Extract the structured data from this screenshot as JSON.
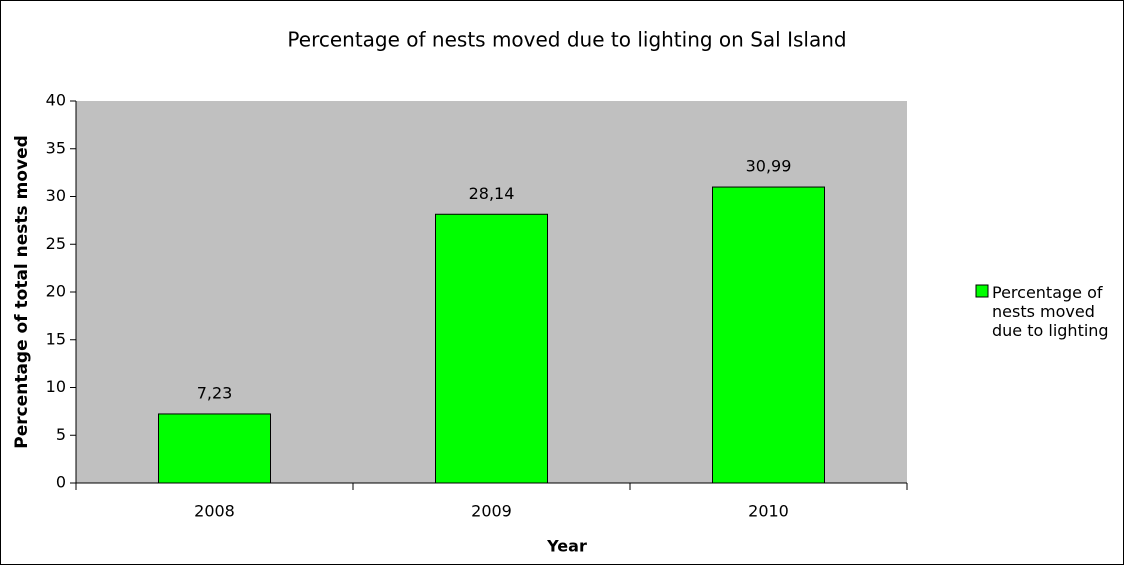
{
  "chart_data": {
    "type": "bar",
    "title": "Percentage of nests moved due to lighting on Sal Island",
    "x_label": "Year",
    "y_label": "Percentage of total nests moved",
    "categories": [
      "2008",
      "2009",
      "2010"
    ],
    "series": [
      {
        "name": "Percentage of nests moved due to lighting",
        "color": "#00ff00",
        "values": [
          7.23,
          28.14,
          30.99
        ],
        "value_labels": [
          "7,23",
          "28,14",
          "30,99"
        ]
      }
    ],
    "ylim": [
      0,
      40
    ],
    "yticks": [
      0,
      5,
      10,
      15,
      20,
      25,
      30,
      35,
      40
    ],
    "grid": false,
    "legend": "right",
    "plot_background": "#c0c0c0"
  }
}
